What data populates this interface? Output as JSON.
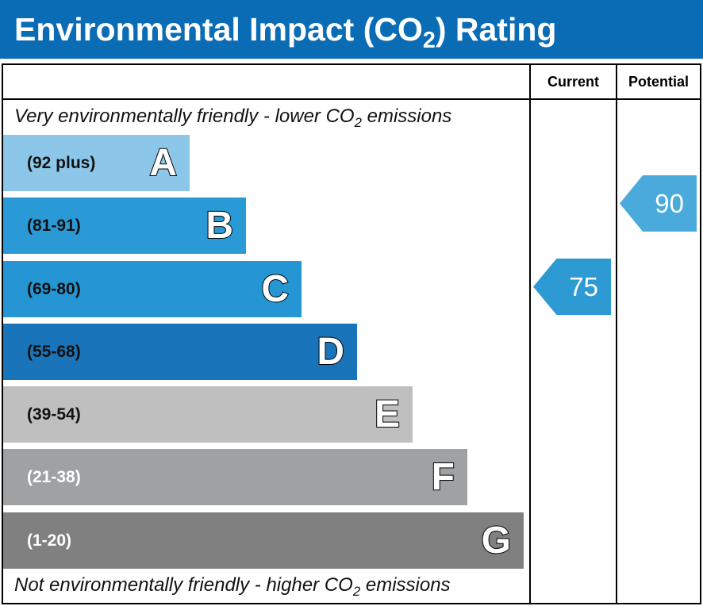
{
  "title": {
    "prefix": "Environmental Impact (CO",
    "sub": "2",
    "suffix": ") Rating"
  },
  "columns": {
    "current": "Current",
    "potential": "Potential"
  },
  "top_note": {
    "prefix": "Very environmentally friendly - lower CO",
    "sub": "2",
    "suffix": " emissions"
  },
  "bottom_note": {
    "prefix": "Not environmentally friendly - higher CO",
    "sub": "2",
    "suffix": " emissions"
  },
  "chart_data": {
    "type": "bar",
    "bands": [
      {
        "letter": "A",
        "range": "(92 plus)",
        "color": "#8cc6e8"
      },
      {
        "letter": "B",
        "range": "(81-91)",
        "color": "#2a9ad6"
      },
      {
        "letter": "C",
        "range": "(69-80)",
        "color": "#2596d3"
      },
      {
        "letter": "D",
        "range": "(55-68)",
        "color": "#1a74b9"
      },
      {
        "letter": "E",
        "range": "(39-54)",
        "color": "#bfbfbf"
      },
      {
        "letter": "F",
        "range": "(21-38)",
        "color": "#a0a1a3"
      },
      {
        "letter": "G",
        "range": "(1-20)",
        "color": "#808080"
      }
    ],
    "current": {
      "value": "75",
      "band": "C",
      "color": "#2e9ad4"
    },
    "potential": {
      "value": "90",
      "band": "B",
      "color": "#4aaadc"
    }
  }
}
